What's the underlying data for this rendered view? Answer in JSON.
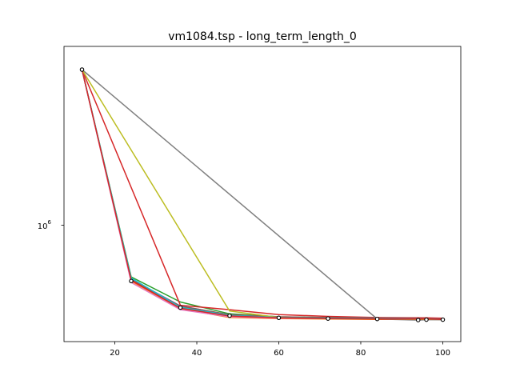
{
  "chart_data": {
    "type": "line",
    "title": "vm1084.tsp - long_term_length_0",
    "xlabel": "",
    "ylabel": "",
    "xlim": [
      7.6,
      104.4
    ],
    "ylim": [
      290000,
      2900000
    ],
    "yscale": "log",
    "grid": false,
    "x_ticks": [
      20,
      40,
      60,
      80,
      100
    ],
    "x_tick_labels": [
      "20",
      "40",
      "60",
      "80",
      "100"
    ],
    "y_ticks": [
      1000000
    ],
    "y_tick_base": "10",
    "y_tick_exp": "6",
    "series": [
      {
        "color": "#1f77b4",
        "x": [
          12,
          24,
          36,
          48,
          60,
          72,
          84,
          96,
          100
        ],
        "y": [
          2420000,
          470000,
          380000,
          355000,
          350000,
          349000,
          348000,
          347000,
          346000
        ]
      },
      {
        "color": "#ff7f0e",
        "x": [
          12,
          24,
          36,
          48,
          60,
          72,
          84,
          96,
          100
        ],
        "y": [
          2420000,
          465000,
          375000,
          350000,
          347000,
          346000,
          345000,
          345000,
          344000
        ]
      },
      {
        "color": "#2ca02c",
        "x": [
          12,
          24,
          36,
          48,
          60,
          72,
          84,
          96,
          100
        ],
        "y": [
          2420000,
          480000,
          395000,
          360000,
          352000,
          350000,
          349000,
          348000,
          347000
        ]
      },
      {
        "color": "#d62728",
        "x": [
          12,
          36,
          48,
          60,
          72,
          84,
          96,
          100
        ],
        "y": [
          2420000,
          385000,
          372000,
          358000,
          353000,
          350000,
          349000,
          348000
        ]
      },
      {
        "color": "#9467bd",
        "x": [
          12,
          24,
          36,
          48,
          60,
          72,
          84,
          96,
          100
        ],
        "y": [
          2420000,
          472000,
          383000,
          357000,
          351000,
          349000,
          348000,
          347000,
          346000
        ]
      },
      {
        "color": "#8c564b",
        "x": [
          12,
          24,
          36,
          48,
          60,
          72,
          84,
          96,
          100
        ],
        "y": [
          2420000,
          470000,
          382000,
          358000,
          352000,
          350000,
          348000,
          347000,
          346000
        ]
      },
      {
        "color": "#e377c2",
        "x": [
          12,
          24,
          36,
          48,
          60,
          72,
          84,
          96,
          100
        ],
        "y": [
          2420000,
          460000,
          372000,
          352000,
          348000,
          347000,
          346000,
          345000,
          345000
        ]
      },
      {
        "color": "#7f7f7f",
        "x": [
          12,
          84,
          94,
          96,
          100
        ],
        "y": [
          2420000,
          346000,
          343000,
          344000,
          344000
        ]
      },
      {
        "color": "#bcbd22",
        "x": [
          12,
          48,
          60,
          72,
          84,
          96,
          100
        ],
        "y": [
          2420000,
          368000,
          350000,
          347000,
          346000,
          345000,
          345000
        ]
      },
      {
        "color": "#17becf",
        "x": [
          12,
          24,
          36,
          48,
          60,
          72,
          84,
          96,
          100
        ],
        "y": [
          2420000,
          476000,
          379000,
          356000,
          350000,
          348000,
          347000,
          346000,
          345000
        ]
      },
      {
        "color": "#d62728",
        "x": [
          12,
          24,
          36,
          48,
          60,
          72,
          84,
          96,
          100
        ],
        "y": [
          2420000,
          468000,
          376000,
          354000,
          349000,
          347000,
          346000,
          346000,
          345000
        ]
      }
    ],
    "markers": {
      "x": [
        12,
        24,
        36,
        48,
        60,
        72,
        84,
        94,
        96,
        100
      ],
      "y": [
        2420000,
        465000,
        378000,
        355000,
        349000,
        347000,
        346000,
        343000,
        344000,
        344000
      ]
    }
  }
}
